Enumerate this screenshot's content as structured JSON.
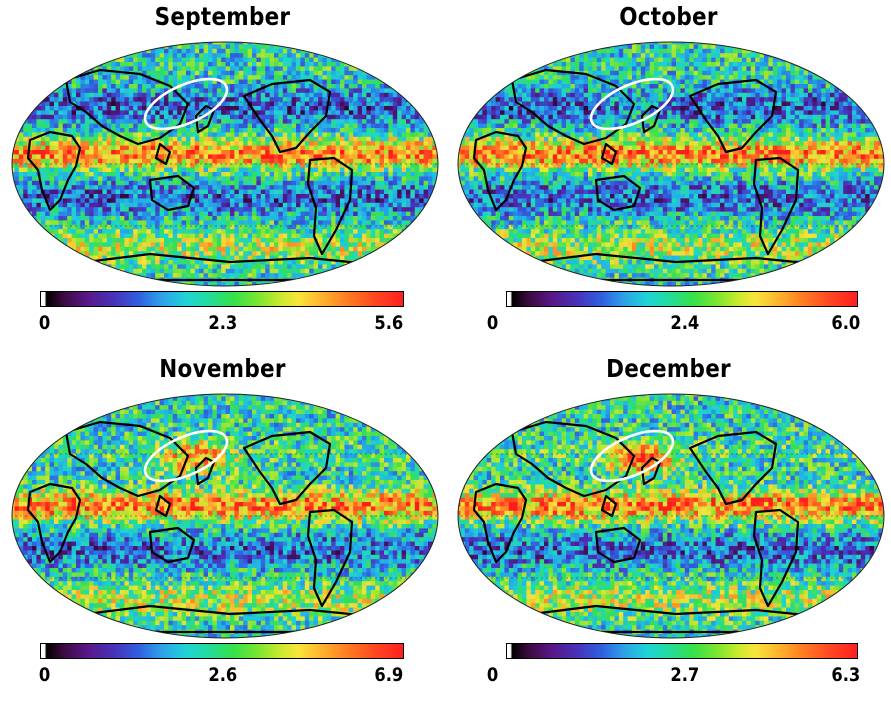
{
  "panels": [
    {
      "title": "September",
      "scale_min": "0",
      "scale_mid": "2.3",
      "scale_max": "5.6"
    },
    {
      "title": "October",
      "scale_min": "0",
      "scale_mid": "2.4",
      "scale_max": "6.0"
    },
    {
      "title": "November",
      "scale_min": "0",
      "scale_mid": "2.6",
      "scale_max": "6.9"
    },
    {
      "title": "December",
      "scale_min": "0",
      "scale_mid": "2.7",
      "scale_max": "6.3"
    }
  ],
  "map": {
    "projection": "robinson-like, pacific-centered",
    "highlight": "white ellipse over Japan / NW Pacific",
    "coastline_color": "#000000",
    "highlight_color": "#ffffff"
  },
  "colormap": [
    "#000000",
    "#5a178a",
    "#2f5fe0",
    "#1fd3d8",
    "#35e04a",
    "#f7e63a",
    "#ff7a22",
    "#ff1f1f"
  ]
}
